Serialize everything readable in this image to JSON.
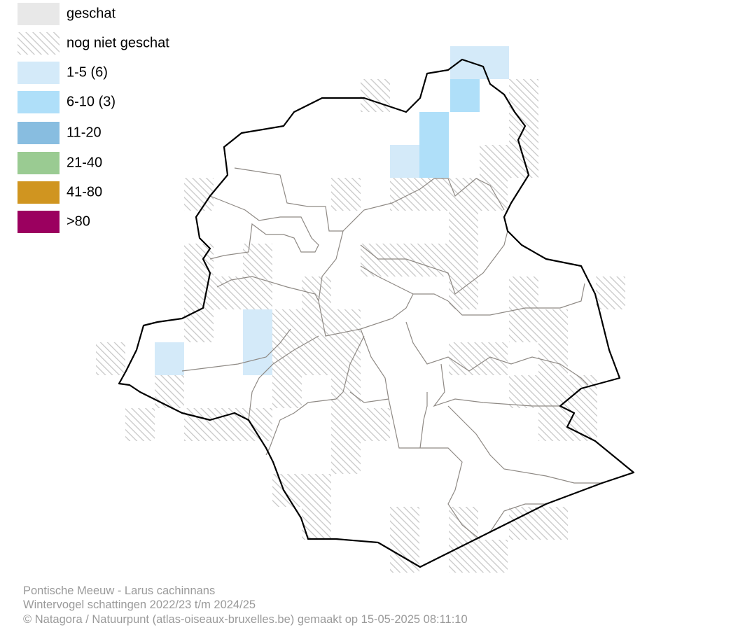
{
  "legend": [
    {
      "label": "geschat",
      "color": "#e8e8e8"
    },
    {
      "label": "nog niet geschat",
      "hatched": true
    },
    {
      "label": "1-5 (6)",
      "color": "#d4eaf9"
    },
    {
      "label": "6-10 (3)",
      "color": "#afdff9"
    },
    {
      "label": "11-20",
      "color": "#88bde0"
    },
    {
      "label": "21-40",
      "color": "#9acb92"
    },
    {
      "label": "41-80",
      "color": "#d09520"
    },
    {
      "label": ">80",
      "color": "#9b005f"
    }
  ],
  "footer": [
    "Pontische Meeuw - Larus cachinnans",
    "Wintervogel schattingen 2022/23 t/m 2024/25",
    "© Natagora / Natuurpunt (atlas-oiseaux-bruxelles.be) gemaakt op 15-05-2025 08:11:10"
  ]
}
